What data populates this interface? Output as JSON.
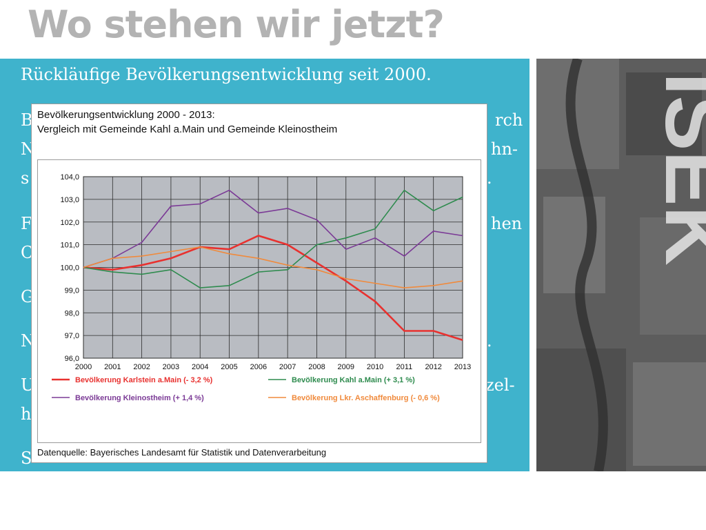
{
  "slide": {
    "title": "Wo stehen wir jetzt?",
    "bullet_lines": [
      "Rückläufige Bevölkerungsentwicklung seit 2000.",
      "B",
      "rch",
      "N",
      "hn-",
      "s",
      ".",
      "F",
      "hen",
      "C",
      "G",
      "N",
      ".",
      "U",
      "zel-",
      "h",
      "S"
    ]
  },
  "photo": {
    "label": "ISEK"
  },
  "chart_card": {
    "title_line1": "Bevölkerungsentwicklung 2000 - 2013:",
    "title_line2": "Vergleich mit Gemeinde Kahl a.Main und Gemeinde Kleinostheim",
    "source": "Datenquelle: Bayerisches Landesamt für Statistik und Datenverarbeitung"
  },
  "chart_data": {
    "type": "line",
    "x": [
      2000,
      2001,
      2002,
      2003,
      2004,
      2005,
      2006,
      2007,
      2008,
      2009,
      2010,
      2011,
      2012,
      2013
    ],
    "x_tick_labels": [
      "2000",
      "2001",
      "2002",
      "2003",
      "2004",
      "2005",
      "2006",
      "2007",
      "2008",
      "2009",
      "2010",
      "2011",
      "2012",
      "2013"
    ],
    "y_tick_labels": [
      "96,0",
      "97,0",
      "98,0",
      "99,0",
      "100,0",
      "101,0",
      "102,0",
      "103,0",
      "104,0"
    ],
    "ylim": [
      96,
      104
    ],
    "grid": true,
    "legend_position": "bottom",
    "plot_background": "#b9bcc2",
    "series": [
      {
        "name": "Bevölkerung Karlstein a.Main (- 3,2 %)",
        "color": "#e8312f",
        "values": [
          100.0,
          99.9,
          100.1,
          100.4,
          100.9,
          100.8,
          101.4,
          101.0,
          100.2,
          99.4,
          98.5,
          97.2,
          97.2,
          96.8
        ]
      },
      {
        "name": "Bevölkerung Kahl a.Main (+ 3,1 %)",
        "color": "#2e8b4e",
        "values": [
          100.0,
          99.8,
          99.7,
          99.9,
          99.1,
          99.2,
          99.8,
          99.9,
          101.0,
          101.3,
          101.7,
          103.4,
          102.5,
          103.1
        ]
      },
      {
        "name": "Bevölkerung Kleinostheim (+ 1,4 %)",
        "color": "#7b3a96",
        "values": [
          100.0,
          100.4,
          101.1,
          102.7,
          102.8,
          103.4,
          102.4,
          102.6,
          102.1,
          100.8,
          101.3,
          100.5,
          101.6,
          101.4
        ]
      },
      {
        "name": "Bevölkerung Lkr. Aschaffenburg (- 0,6 %)",
        "color": "#f08a3c",
        "values": [
          100.0,
          100.4,
          100.5,
          100.7,
          100.9,
          100.6,
          100.4,
          100.1,
          99.9,
          99.5,
          99.3,
          99.1,
          99.2,
          99.4
        ]
      }
    ]
  }
}
